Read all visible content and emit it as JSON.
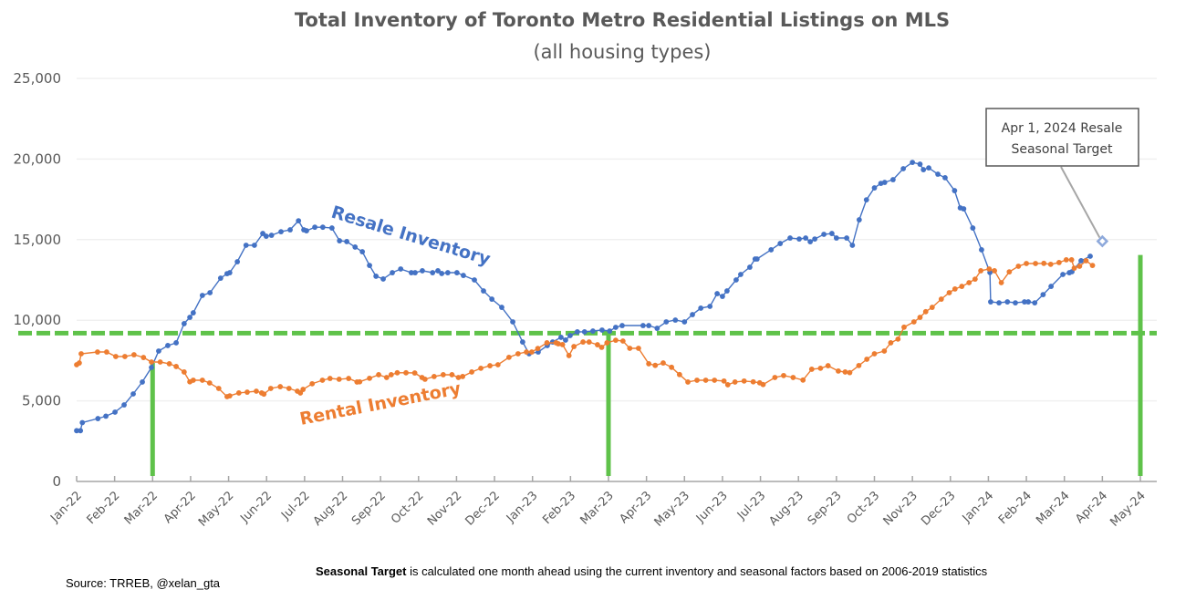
{
  "chart_data": {
    "type": "line",
    "title": "Total Inventory of Toronto Metro Residential Listings on MLS",
    "subtitle": "(all housing types)",
    "xlabel": "",
    "ylabel": "",
    "ylim": [
      0,
      25000
    ],
    "yticks": [
      0,
      5000,
      10000,
      15000,
      20000,
      25000
    ],
    "ytick_labels": [
      "0",
      "5,000",
      "10,000",
      "15,000",
      "20,000",
      "25,000"
    ],
    "x_unit": "months since Jan-22",
    "xlim": [
      0,
      28
    ],
    "xtick_labels": [
      "Jan-22",
      "Feb-22",
      "Mar-22",
      "Apr-22",
      "May-22",
      "Jun-22",
      "Jul-22",
      "Aug-22",
      "Sep-22",
      "Oct-22",
      "Nov-22",
      "Dec-22",
      "Jan-23",
      "Feb-23",
      "Mar-23",
      "Apr-23",
      "May-23",
      "Jun-23",
      "Jul-23",
      "Aug-23",
      "Sep-23",
      "Oct-23",
      "Nov-23",
      "Dec-23",
      "Jan-24",
      "Feb-24",
      "Mar-24",
      "Apr-24",
      "May-24"
    ],
    "grid": true,
    "series": [
      {
        "name": "Resale Inventory",
        "color": "#4472C4",
        "label_text": "Resale Inventory",
        "points": [
          [
            0.0,
            3150
          ],
          [
            0.1,
            3150
          ],
          [
            0.15,
            3650
          ],
          [
            0.56,
            3900
          ],
          [
            0.77,
            4050
          ],
          [
            1.01,
            4300
          ],
          [
            1.25,
            4750
          ],
          [
            1.49,
            5430
          ],
          [
            1.73,
            6170
          ],
          [
            1.97,
            7070
          ],
          [
            2.16,
            8090
          ],
          [
            2.4,
            8430
          ],
          [
            2.62,
            8600
          ],
          [
            2.83,
            9790
          ],
          [
            2.98,
            10180
          ],
          [
            3.07,
            10460
          ],
          [
            3.31,
            11540
          ],
          [
            3.51,
            11710
          ],
          [
            3.79,
            12610
          ],
          [
            3.96,
            12890
          ],
          [
            4.03,
            12950
          ],
          [
            4.23,
            13630
          ],
          [
            4.46,
            14650
          ],
          [
            4.68,
            14650
          ],
          [
            4.9,
            15380
          ],
          [
            4.99,
            15210
          ],
          [
            5.13,
            15270
          ],
          [
            5.38,
            15490
          ],
          [
            5.62,
            15610
          ],
          [
            5.84,
            16170
          ],
          [
            5.98,
            15610
          ],
          [
            6.05,
            15550
          ],
          [
            6.27,
            15770
          ],
          [
            6.48,
            15770
          ],
          [
            6.72,
            15720
          ],
          [
            6.92,
            14930
          ],
          [
            7.11,
            14880
          ],
          [
            7.33,
            14540
          ],
          [
            7.52,
            14250
          ],
          [
            7.71,
            13400
          ],
          [
            7.88,
            12730
          ],
          [
            8.07,
            12560
          ],
          [
            8.31,
            12950
          ],
          [
            8.53,
            13180
          ],
          [
            8.81,
            12950
          ],
          [
            8.91,
            12950
          ],
          [
            9.1,
            13070
          ],
          [
            9.37,
            12950
          ],
          [
            9.51,
            13070
          ],
          [
            9.61,
            12900
          ],
          [
            9.77,
            12950
          ],
          [
            10.01,
            12950
          ],
          [
            10.18,
            12780
          ],
          [
            10.47,
            12500
          ],
          [
            10.71,
            11820
          ],
          [
            10.93,
            11310
          ],
          [
            11.19,
            10800
          ],
          [
            11.48,
            9900
          ],
          [
            11.74,
            8650
          ],
          [
            11.91,
            7920
          ],
          [
            12.15,
            8030
          ],
          [
            12.39,
            8430
          ],
          [
            12.53,
            8650
          ],
          [
            12.75,
            8940
          ],
          [
            12.87,
            8770
          ],
          [
            12.99,
            9050
          ],
          [
            13.18,
            9280
          ],
          [
            13.37,
            9280
          ],
          [
            13.59,
            9330
          ],
          [
            13.83,
            9390
          ],
          [
            14.03,
            9330
          ],
          [
            14.19,
            9560
          ],
          [
            14.36,
            9670
          ],
          [
            14.91,
            9670
          ],
          [
            15.06,
            9670
          ],
          [
            15.28,
            9500
          ],
          [
            15.52,
            9900
          ],
          [
            15.76,
            10010
          ],
          [
            16.0,
            9900
          ],
          [
            16.21,
            10350
          ],
          [
            16.43,
            10750
          ],
          [
            16.67,
            10860
          ],
          [
            16.86,
            11650
          ],
          [
            17.0,
            11480
          ],
          [
            17.12,
            11820
          ],
          [
            17.36,
            12500
          ],
          [
            17.48,
            12840
          ],
          [
            17.72,
            13290
          ],
          [
            17.86,
            13800
          ],
          [
            17.91,
            13800
          ],
          [
            18.28,
            14370
          ],
          [
            18.52,
            14760
          ],
          [
            18.78,
            15100
          ],
          [
            19.02,
            15040
          ],
          [
            19.19,
            15100
          ],
          [
            19.31,
            14870
          ],
          [
            19.43,
            15040
          ],
          [
            19.67,
            15330
          ],
          [
            19.88,
            15380
          ],
          [
            20.0,
            15100
          ],
          [
            20.27,
            15100
          ],
          [
            20.42,
            14650
          ],
          [
            20.6,
            16230
          ],
          [
            20.79,
            17470
          ],
          [
            21.0,
            18210
          ],
          [
            21.17,
            18490
          ],
          [
            21.27,
            18550
          ],
          [
            21.49,
            18720
          ],
          [
            21.76,
            19400
          ],
          [
            22.0,
            19790
          ],
          [
            22.2,
            19680
          ],
          [
            22.29,
            19340
          ],
          [
            22.43,
            19450
          ],
          [
            22.67,
            19060
          ],
          [
            22.86,
            18840
          ],
          [
            23.11,
            18040
          ],
          [
            23.26,
            16970
          ],
          [
            23.35,
            16910
          ],
          [
            23.59,
            15720
          ],
          [
            23.82,
            14370
          ],
          [
            24.04,
            12960
          ],
          [
            24.06,
            11140
          ],
          [
            24.28,
            11080
          ],
          [
            24.5,
            11140
          ],
          [
            24.71,
            11080
          ],
          [
            24.95,
            11140
          ],
          [
            25.05,
            11140
          ],
          [
            25.22,
            11080
          ],
          [
            25.44,
            11590
          ],
          [
            25.65,
            12100
          ],
          [
            25.96,
            12840
          ],
          [
            26.13,
            12950
          ],
          [
            26.2,
            13010
          ],
          [
            26.44,
            13690
          ],
          [
            26.68,
            13970
          ]
        ]
      },
      {
        "name": "Rental Inventory",
        "color": "#ED7D31",
        "label_text": "Rental Inventory",
        "points": [
          [
            0.0,
            7240
          ],
          [
            0.07,
            7350
          ],
          [
            0.12,
            7920
          ],
          [
            0.55,
            8030
          ],
          [
            0.79,
            8030
          ],
          [
            1.03,
            7750
          ],
          [
            1.27,
            7750
          ],
          [
            1.51,
            7860
          ],
          [
            1.76,
            7690
          ],
          [
            1.97,
            7410
          ],
          [
            2.2,
            7410
          ],
          [
            2.44,
            7300
          ],
          [
            2.62,
            7130
          ],
          [
            2.83,
            6790
          ],
          [
            2.98,
            6180
          ],
          [
            3.07,
            6280
          ],
          [
            3.31,
            6280
          ],
          [
            3.5,
            6110
          ],
          [
            3.74,
            5770
          ],
          [
            3.96,
            5260
          ],
          [
            4.03,
            5310
          ],
          [
            4.27,
            5490
          ],
          [
            4.49,
            5540
          ],
          [
            4.73,
            5600
          ],
          [
            4.87,
            5490
          ],
          [
            4.93,
            5420
          ],
          [
            5.11,
            5770
          ],
          [
            5.36,
            5880
          ],
          [
            5.59,
            5770
          ],
          [
            5.81,
            5600
          ],
          [
            5.89,
            5490
          ],
          [
            5.96,
            5710
          ],
          [
            6.2,
            6060
          ],
          [
            6.47,
            6280
          ],
          [
            6.67,
            6390
          ],
          [
            6.91,
            6340
          ],
          [
            7.16,
            6390
          ],
          [
            7.38,
            6170
          ],
          [
            7.45,
            6180
          ],
          [
            7.71,
            6400
          ],
          [
            7.95,
            6620
          ],
          [
            8.16,
            6450
          ],
          [
            8.28,
            6620
          ],
          [
            8.44,
            6740
          ],
          [
            8.67,
            6740
          ],
          [
            8.9,
            6730
          ],
          [
            9.09,
            6450
          ],
          [
            9.17,
            6340
          ],
          [
            9.41,
            6510
          ],
          [
            9.65,
            6620
          ],
          [
            9.88,
            6620
          ],
          [
            10.05,
            6450
          ],
          [
            10.16,
            6510
          ],
          [
            10.4,
            6790
          ],
          [
            10.64,
            7020
          ],
          [
            10.88,
            7180
          ],
          [
            11.09,
            7240
          ],
          [
            11.38,
            7700
          ],
          [
            11.62,
            7920
          ],
          [
            11.84,
            8030
          ],
          [
            11.98,
            8030
          ],
          [
            12.14,
            8250
          ],
          [
            12.38,
            8600
          ],
          [
            12.62,
            8600
          ],
          [
            12.68,
            8540
          ],
          [
            12.79,
            8490
          ],
          [
            12.96,
            7810
          ],
          [
            13.09,
            8370
          ],
          [
            13.33,
            8650
          ],
          [
            13.49,
            8650
          ],
          [
            13.71,
            8480
          ],
          [
            13.82,
            8320
          ],
          [
            13.96,
            8600
          ],
          [
            14.19,
            8760
          ],
          [
            14.38,
            8710
          ],
          [
            14.56,
            8260
          ],
          [
            14.79,
            8260
          ],
          [
            15.06,
            7300
          ],
          [
            15.23,
            7200
          ],
          [
            15.44,
            7350
          ],
          [
            15.66,
            7080
          ],
          [
            15.87,
            6630
          ],
          [
            16.09,
            6170
          ],
          [
            16.33,
            6280
          ],
          [
            16.56,
            6280
          ],
          [
            16.79,
            6280
          ],
          [
            17.04,
            6230
          ],
          [
            17.14,
            6000
          ],
          [
            17.33,
            6170
          ],
          [
            17.57,
            6230
          ],
          [
            17.81,
            6180
          ],
          [
            17.98,
            6120
          ],
          [
            18.07,
            6010
          ],
          [
            18.38,
            6450
          ],
          [
            18.61,
            6570
          ],
          [
            18.86,
            6450
          ],
          [
            19.12,
            6290
          ],
          [
            19.35,
            6960
          ],
          [
            19.58,
            7020
          ],
          [
            19.78,
            7180
          ],
          [
            20.05,
            6850
          ],
          [
            20.23,
            6790
          ],
          [
            20.35,
            6750
          ],
          [
            20.59,
            7190
          ],
          [
            20.8,
            7580
          ],
          [
            21.0,
            7920
          ],
          [
            21.26,
            8090
          ],
          [
            21.43,
            8600
          ],
          [
            21.62,
            8830
          ],
          [
            21.78,
            9570
          ],
          [
            22.04,
            9900
          ],
          [
            22.2,
            10180
          ],
          [
            22.35,
            10530
          ],
          [
            22.52,
            10800
          ],
          [
            22.76,
            11310
          ],
          [
            22.97,
            11710
          ],
          [
            23.12,
            11940
          ],
          [
            23.3,
            12100
          ],
          [
            23.49,
            12330
          ],
          [
            23.65,
            12550
          ],
          [
            23.8,
            13070
          ],
          [
            24.02,
            13180
          ],
          [
            24.16,
            13070
          ],
          [
            24.34,
            12330
          ],
          [
            24.55,
            13000
          ],
          [
            24.79,
            13350
          ],
          [
            25.0,
            13520
          ],
          [
            25.24,
            13520
          ],
          [
            25.46,
            13530
          ],
          [
            25.64,
            13470
          ],
          [
            25.86,
            13580
          ],
          [
            26.05,
            13750
          ],
          [
            26.19,
            13750
          ],
          [
            26.26,
            13230
          ],
          [
            26.4,
            13350
          ],
          [
            26.57,
            13690
          ],
          [
            26.74,
            13400
          ]
        ]
      }
    ],
    "reference_lines": [
      {
        "name": "Seasonal target (horizontal)",
        "orientation": "horizontal",
        "value": 9200,
        "style": "dashed",
        "color": "#5FC24A"
      },
      {
        "name": "Mar-22 marker",
        "orientation": "vertical",
        "x": 2.0,
        "value": 7350,
        "color": "#5FC24A"
      },
      {
        "name": "Mar-23 marker",
        "orientation": "vertical",
        "x": 14.0,
        "value": 9200,
        "color": "#5FC24A"
      },
      {
        "name": "May-24 marker",
        "orientation": "vertical",
        "x": 28.0,
        "value": 14050,
        "color": "#5FC24A"
      }
    ],
    "target_point": {
      "x": 27.0,
      "value": 14900,
      "marker": "diamond",
      "color": "#8EA9DB"
    },
    "annotations": [
      {
        "text_line1": "Apr 1, 2024 Resale",
        "text_line2": "Seasonal Target"
      }
    ]
  },
  "footer": {
    "source": "Source: TRREB, @xelan_gta",
    "note_bold": "Seasonal Target",
    "note_rest": " is calculated one month ahead using the current inventory and seasonal factors based on 2006-2019 statistics"
  }
}
